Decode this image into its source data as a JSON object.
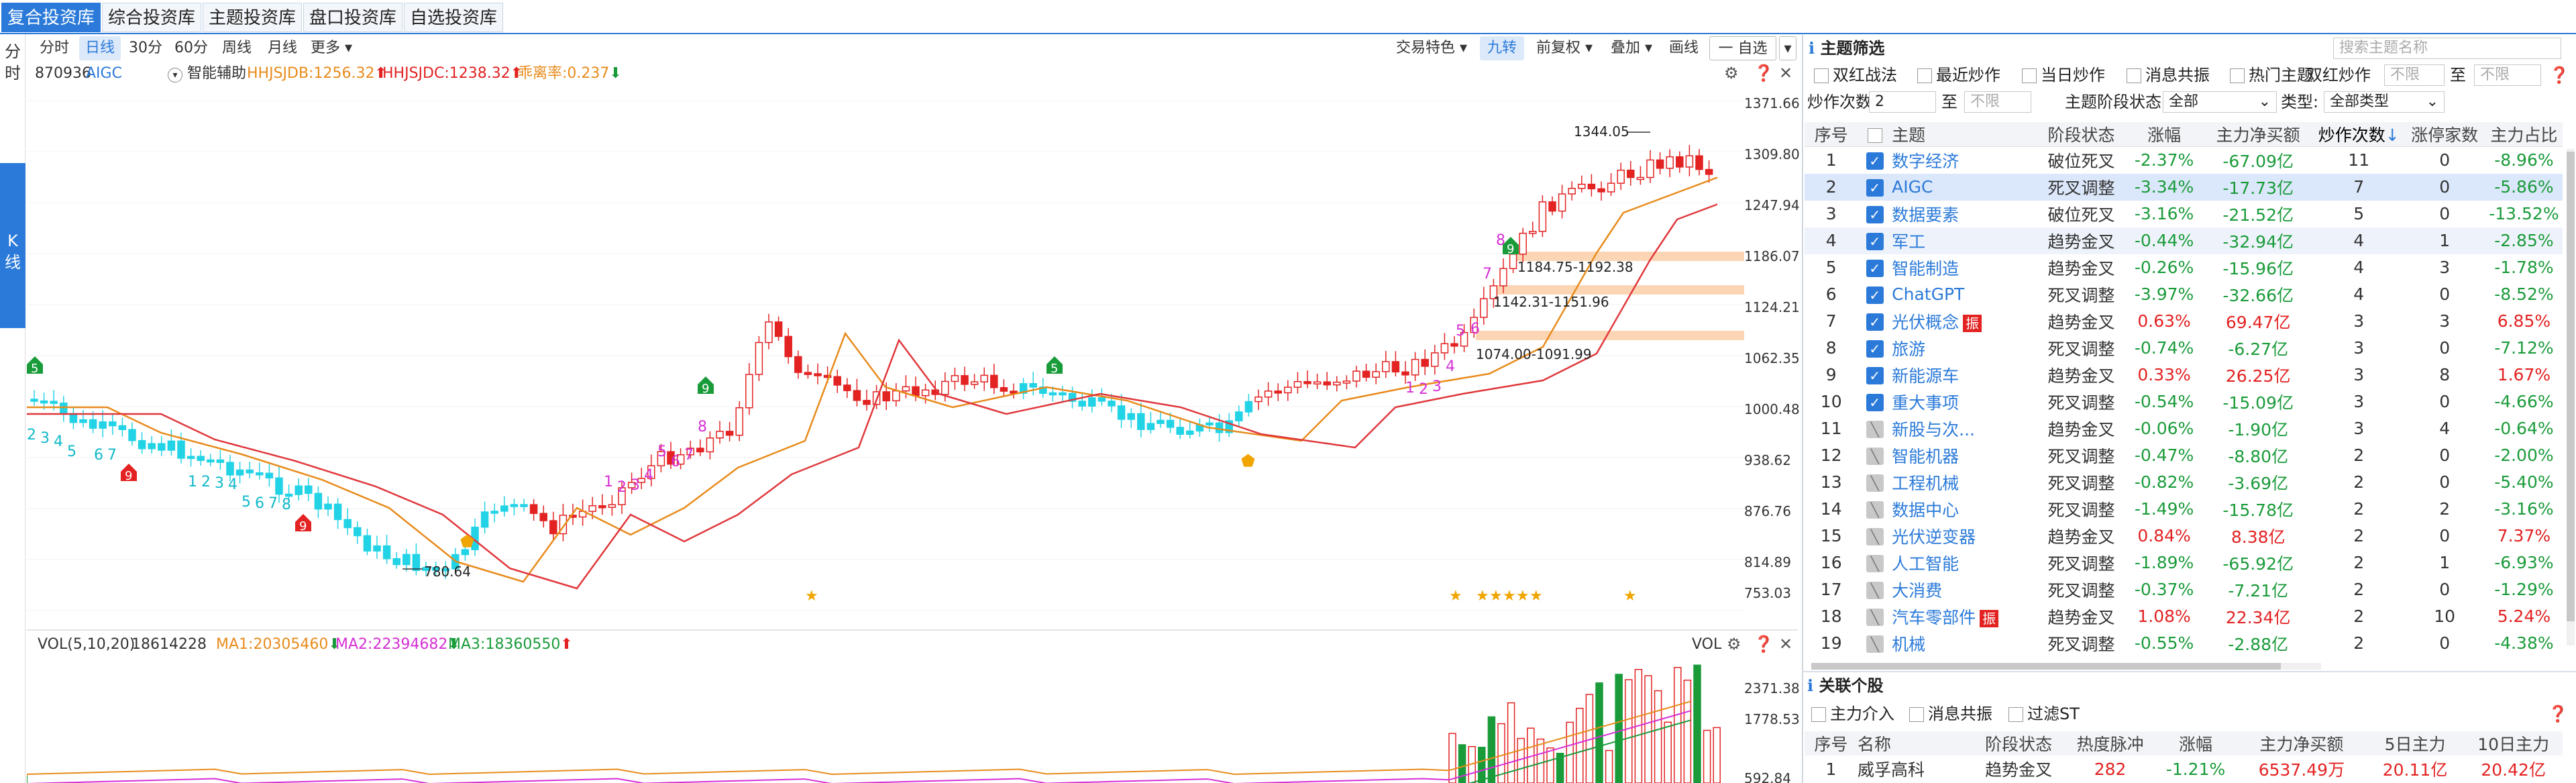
{
  "top_tabs": [
    "复合投资库",
    "综合投资库",
    "主题投资库",
    "盘口投资库",
    "自选投资库"
  ],
  "left_bar": {
    "fenshi": "分\n时",
    "kline": "K\n线"
  },
  "chart_toolbar": {
    "periods": [
      "分时",
      "日线",
      "30分",
      "60分",
      "周线",
      "月线",
      "更多"
    ],
    "right": [
      "交易特色",
      "九转",
      "前复权",
      "叠加",
      "画线",
      "一 自选"
    ]
  },
  "stock": {
    "code": "870936",
    "name": "AIGC",
    "assist": "智能辅助"
  },
  "indicators": {
    "hhjsjdb": "HHJSJDB:1256.32",
    "hhjsjdc": "HHJSJDC:1238.32",
    "chengbi": "乖离率:0.237"
  },
  "price_axis": [
    "1371.66",
    "1309.80",
    "1247.94",
    "1186.07",
    "1124.21",
    "1062.35",
    "1000.48",
    "938.62",
    "876.76",
    "814.89",
    "753.03"
  ],
  "annotations": {
    "high": "1344.05",
    "low": "780.64",
    "zone1": "1184.75-1192.38",
    "zone2": "1142.31-1151.96",
    "zone3": "1074.00-1091.99"
  },
  "vol": {
    "title": "VOL(5,10,20)",
    "value": "18614228",
    "ma1": "MA1:20305460",
    "ma2": "MA2:22394682",
    "ma3": "MA3:18360550",
    "axis": [
      "2371.38",
      "1778.53",
      "592.84"
    ],
    "label": "VOL"
  },
  "colors": {
    "up": "#e32222",
    "down": "#1a9b3a",
    "accent": "#2b7ad9",
    "cyan": "#22d3e6",
    "orange": "#e88b1c",
    "red_ma": "#e0383c"
  },
  "right_panel": {
    "title": "主题筛选",
    "search_placeholder": "搜索主题名称",
    "filters": [
      "双红战法",
      "最近炒作",
      "当日炒作",
      "消息共振",
      "热门主题"
    ],
    "double_red_label": "双红炒作",
    "no_limit": "不限",
    "to": "至",
    "count_label": "炒作次数:",
    "count_value": "2",
    "stage_label": "主题阶段状态:",
    "stage_value": "全部",
    "type_label": "类型:",
    "type_value": "全部类型",
    "headers": [
      "序号",
      "",
      "主题",
      "阶段状态",
      "涨幅",
      "主力净买额",
      "炒作次数",
      "涨停家数",
      "主力占比"
    ],
    "rows": [
      {
        "n": "1",
        "chk": true,
        "name": "数字经济",
        "stage": "破位死叉",
        "chg": "-2.37%",
        "net": "-67.09亿",
        "cnt": "11",
        "lim": "0",
        "pct": "-8.96%",
        "z": false
      },
      {
        "n": "2",
        "chk": true,
        "name": "AIGC",
        "stage": "死叉调整",
        "chg": "-3.34%",
        "net": "-17.73亿",
        "cnt": "7",
        "lim": "0",
        "pct": "-5.86%",
        "z": false
      },
      {
        "n": "3",
        "chk": true,
        "name": "数据要素",
        "stage": "破位死叉",
        "chg": "-3.16%",
        "net": "-21.52亿",
        "cnt": "5",
        "lim": "0",
        "pct": "-13.52%",
        "z": false
      },
      {
        "n": "4",
        "chk": true,
        "name": "军工",
        "stage": "趋势金叉",
        "chg": "-0.44%",
        "net": "-32.94亿",
        "cnt": "4",
        "lim": "1",
        "pct": "-2.85%",
        "z": false
      },
      {
        "n": "5",
        "chk": true,
        "name": "智能制造",
        "stage": "趋势金叉",
        "chg": "-0.26%",
        "net": "-15.96亿",
        "cnt": "4",
        "lim": "3",
        "pct": "-1.78%",
        "z": false
      },
      {
        "n": "6",
        "chk": true,
        "name": "ChatGPT",
        "stage": "死叉调整",
        "chg": "-3.97%",
        "net": "-32.66亿",
        "cnt": "4",
        "lim": "0",
        "pct": "-8.52%",
        "z": false
      },
      {
        "n": "7",
        "chk": true,
        "name": "光伏概念",
        "stage": "趋势金叉",
        "chg": "0.63%",
        "net": "69.47亿",
        "cnt": "3",
        "lim": "3",
        "pct": "6.85%",
        "z": true
      },
      {
        "n": "8",
        "chk": true,
        "name": "旅游",
        "stage": "死叉调整",
        "chg": "-0.74%",
        "net": "-6.27亿",
        "cnt": "3",
        "lim": "0",
        "pct": "-7.12%",
        "z": false
      },
      {
        "n": "9",
        "chk": true,
        "name": "新能源车",
        "stage": "趋势金叉",
        "chg": "0.33%",
        "net": "26.25亿",
        "cnt": "3",
        "lim": "8",
        "pct": "1.67%",
        "z": false
      },
      {
        "n": "10",
        "chk": true,
        "name": "重大事项",
        "stage": "死叉调整",
        "chg": "-0.54%",
        "net": "-15.09亿",
        "cnt": "3",
        "lim": "0",
        "pct": "-4.66%",
        "z": false
      },
      {
        "n": "11",
        "chk": false,
        "name": "新股与次...",
        "stage": "趋势金叉",
        "chg": "-0.06%",
        "net": "-1.90亿",
        "cnt": "3",
        "lim": "4",
        "pct": "-0.64%",
        "z": false
      },
      {
        "n": "12",
        "chk": false,
        "name": "智能机器",
        "stage": "死叉调整",
        "chg": "-0.47%",
        "net": "-8.80亿",
        "cnt": "2",
        "lim": "0",
        "pct": "-2.00%",
        "z": false
      },
      {
        "n": "13",
        "chk": false,
        "name": "工程机械",
        "stage": "死叉调整",
        "chg": "-0.82%",
        "net": "-3.69亿",
        "cnt": "2",
        "lim": "0",
        "pct": "-5.40%",
        "z": false
      },
      {
        "n": "14",
        "chk": false,
        "name": "数据中心",
        "stage": "死叉调整",
        "chg": "-1.49%",
        "net": "-15.78亿",
        "cnt": "2",
        "lim": "2",
        "pct": "-3.16%",
        "z": false
      },
      {
        "n": "15",
        "chk": false,
        "name": "光伏逆变器",
        "stage": "趋势金叉",
        "chg": "0.84%",
        "net": "8.38亿",
        "cnt": "2",
        "lim": "0",
        "pct": "7.37%",
        "z": false
      },
      {
        "n": "16",
        "chk": false,
        "name": "人工智能",
        "stage": "死叉调整",
        "chg": "-1.89%",
        "net": "-65.92亿",
        "cnt": "2",
        "lim": "1",
        "pct": "-6.93%",
        "z": false
      },
      {
        "n": "17",
        "chk": false,
        "name": "大消费",
        "stage": "死叉调整",
        "chg": "-0.37%",
        "net": "-7.21亿",
        "cnt": "2",
        "lim": "0",
        "pct": "-1.29%",
        "z": false
      },
      {
        "n": "18",
        "chk": false,
        "name": "汽车零部件",
        "stage": "趋势金叉",
        "chg": "1.08%",
        "net": "22.34亿",
        "cnt": "2",
        "lim": "10",
        "pct": "5.24%",
        "z": true
      },
      {
        "n": "19",
        "chk": false,
        "name": "机械",
        "stage": "死叉调整",
        "chg": "-0.55%",
        "net": "-2.88亿",
        "cnt": "2",
        "lim": "0",
        "pct": "-4.38%",
        "z": false
      }
    ],
    "zhen_label": "振",
    "related": {
      "title": "关联个股",
      "filters": [
        "主力介入",
        "消息共振",
        "过滤ST"
      ],
      "headers": [
        "序号",
        "名称",
        "阶段状态",
        "热度脉冲",
        "涨幅",
        "主力净买额",
        "5日主力",
        "10日主力"
      ],
      "rows": [
        {
          "n": "1",
          "name": "威孚高科",
          "stage": "趋势金叉",
          "heat": "282",
          "chg": "-1.21%",
          "net": "6537.49万",
          "d5": "20.11亿",
          "d10": "20.42亿"
        }
      ]
    }
  }
}
